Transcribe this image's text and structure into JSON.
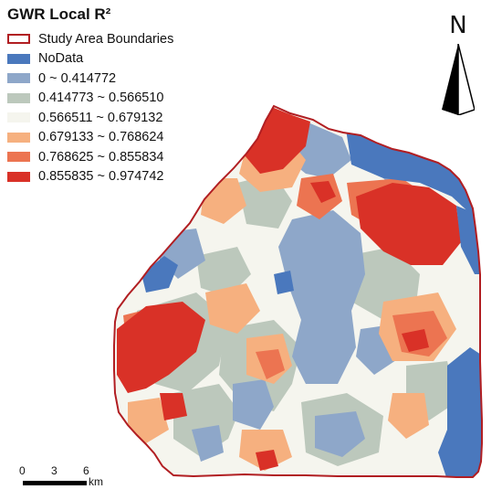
{
  "legend": {
    "title": "GWR Local R²",
    "items": [
      {
        "label": "Study Area Boundaries",
        "kind": "outline",
        "color": "#b11e22"
      },
      {
        "label": "NoData",
        "kind": "fill",
        "color": "#4a78bd"
      },
      {
        "label": "0 ~ 0.414772",
        "kind": "fill",
        "color": "#8ea7c9"
      },
      {
        "label": "0.414773 ~ 0.566510",
        "kind": "fill",
        "color": "#bcc8bc"
      },
      {
        "label": "0.566511 ~ 0.679132",
        "kind": "fill",
        "color": "#f5f5ee"
      },
      {
        "label": "0.679133 ~ 0.768624",
        "kind": "fill",
        "color": "#f6b07f"
      },
      {
        "label": "0.768625 ~ 0.855834",
        "kind": "fill",
        "color": "#ec7451"
      },
      {
        "label": "0.855835 ~ 0.974742",
        "kind": "fill",
        "color": "#d93127"
      }
    ]
  },
  "north_arrow": {
    "letter": "N"
  },
  "scale_bar": {
    "ticks": [
      "0",
      "3",
      "6"
    ],
    "unit": "km"
  }
}
